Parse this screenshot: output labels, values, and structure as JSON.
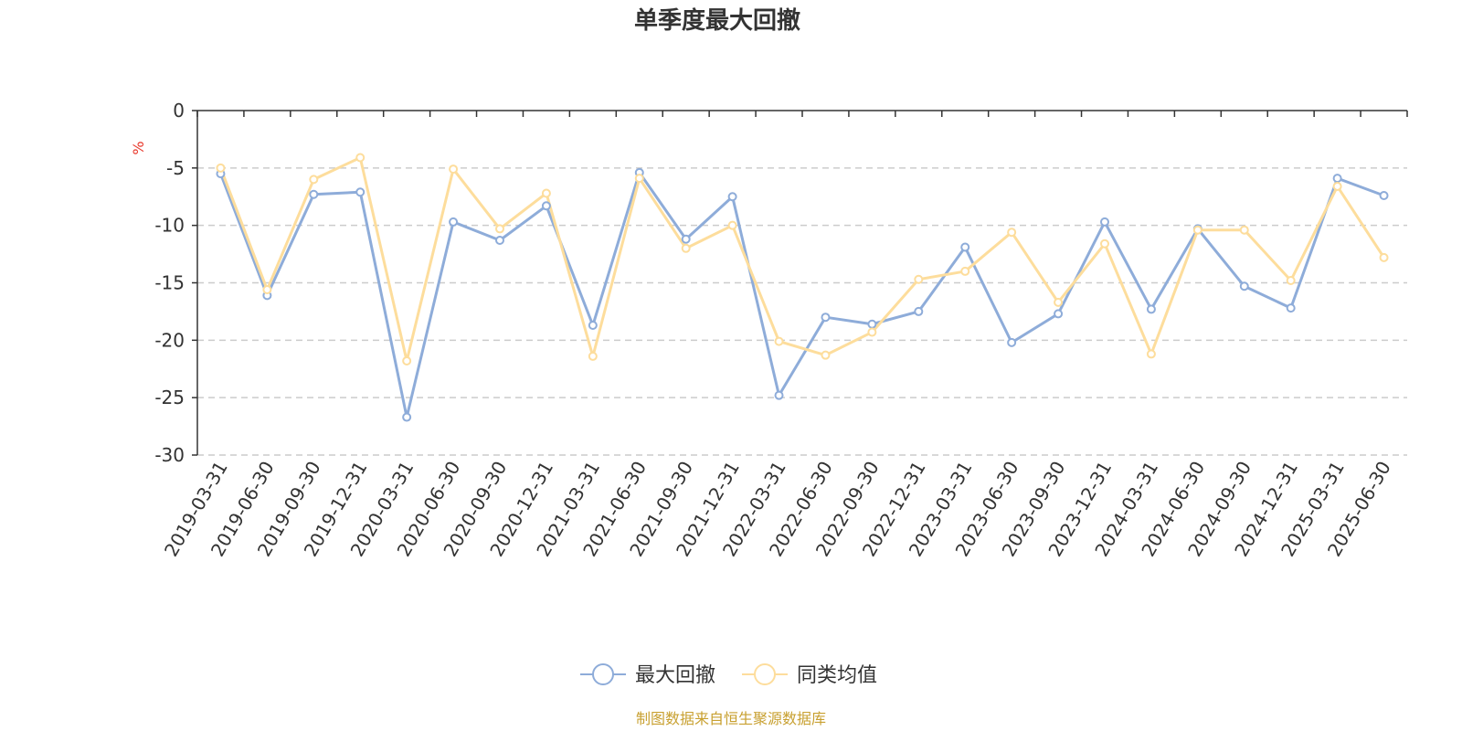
{
  "chart_data": {
    "type": "line",
    "title": "单季度最大回撤",
    "ylabel": "%",
    "ylim": [
      -30,
      0
    ],
    "yticks": [
      0,
      -5,
      -10,
      -15,
      -20,
      -25,
      -30
    ],
    "grid": true,
    "legend_position": "bottom",
    "categories": [
      "2019-03-31",
      "2019-06-30",
      "2019-09-30",
      "2019-12-31",
      "2020-03-31",
      "2020-06-30",
      "2020-09-30",
      "2020-12-31",
      "2021-03-31",
      "2021-06-30",
      "2021-09-30",
      "2021-12-31",
      "2022-03-31",
      "2022-06-30",
      "2022-09-30",
      "2022-12-31",
      "2023-03-31",
      "2023-06-30",
      "2023-09-30",
      "2023-12-31",
      "2024-03-31",
      "2024-06-30",
      "2024-09-30",
      "2024-12-31",
      "2025-03-31",
      "2025-06-30"
    ],
    "series": [
      {
        "name": "最大回撤",
        "color": "#8eacd9",
        "values": [
          -5.5,
          -16.1,
          -7.3,
          -7.1,
          -26.7,
          -9.7,
          -11.3,
          -8.3,
          -18.7,
          -5.4,
          -11.2,
          -7.5,
          -24.8,
          -18.0,
          -18.6,
          -17.5,
          -11.9,
          -20.2,
          -17.7,
          -9.7,
          -17.3,
          -10.3,
          -15.3,
          -17.2,
          -5.9,
          -7.4
        ]
      },
      {
        "name": "同类均值",
        "color": "#fddd9c",
        "values": [
          -5.0,
          -15.6,
          -6.0,
          -4.1,
          -21.8,
          -5.1,
          -10.3,
          -7.2,
          -21.4,
          -5.9,
          -12.0,
          -10.0,
          -20.1,
          -21.3,
          -19.3,
          -14.7,
          -14.0,
          -10.6,
          -16.7,
          -11.6,
          -21.2,
          -10.4,
          -10.4,
          -14.8,
          -6.6,
          -12.8
        ]
      }
    ],
    "unit_color": "#e8382b"
  },
  "source_text": "制图数据来自恒生聚源数据库",
  "source_color": "#c8a030",
  "axis_color": "#333333",
  "grid_color": "#cccccc"
}
